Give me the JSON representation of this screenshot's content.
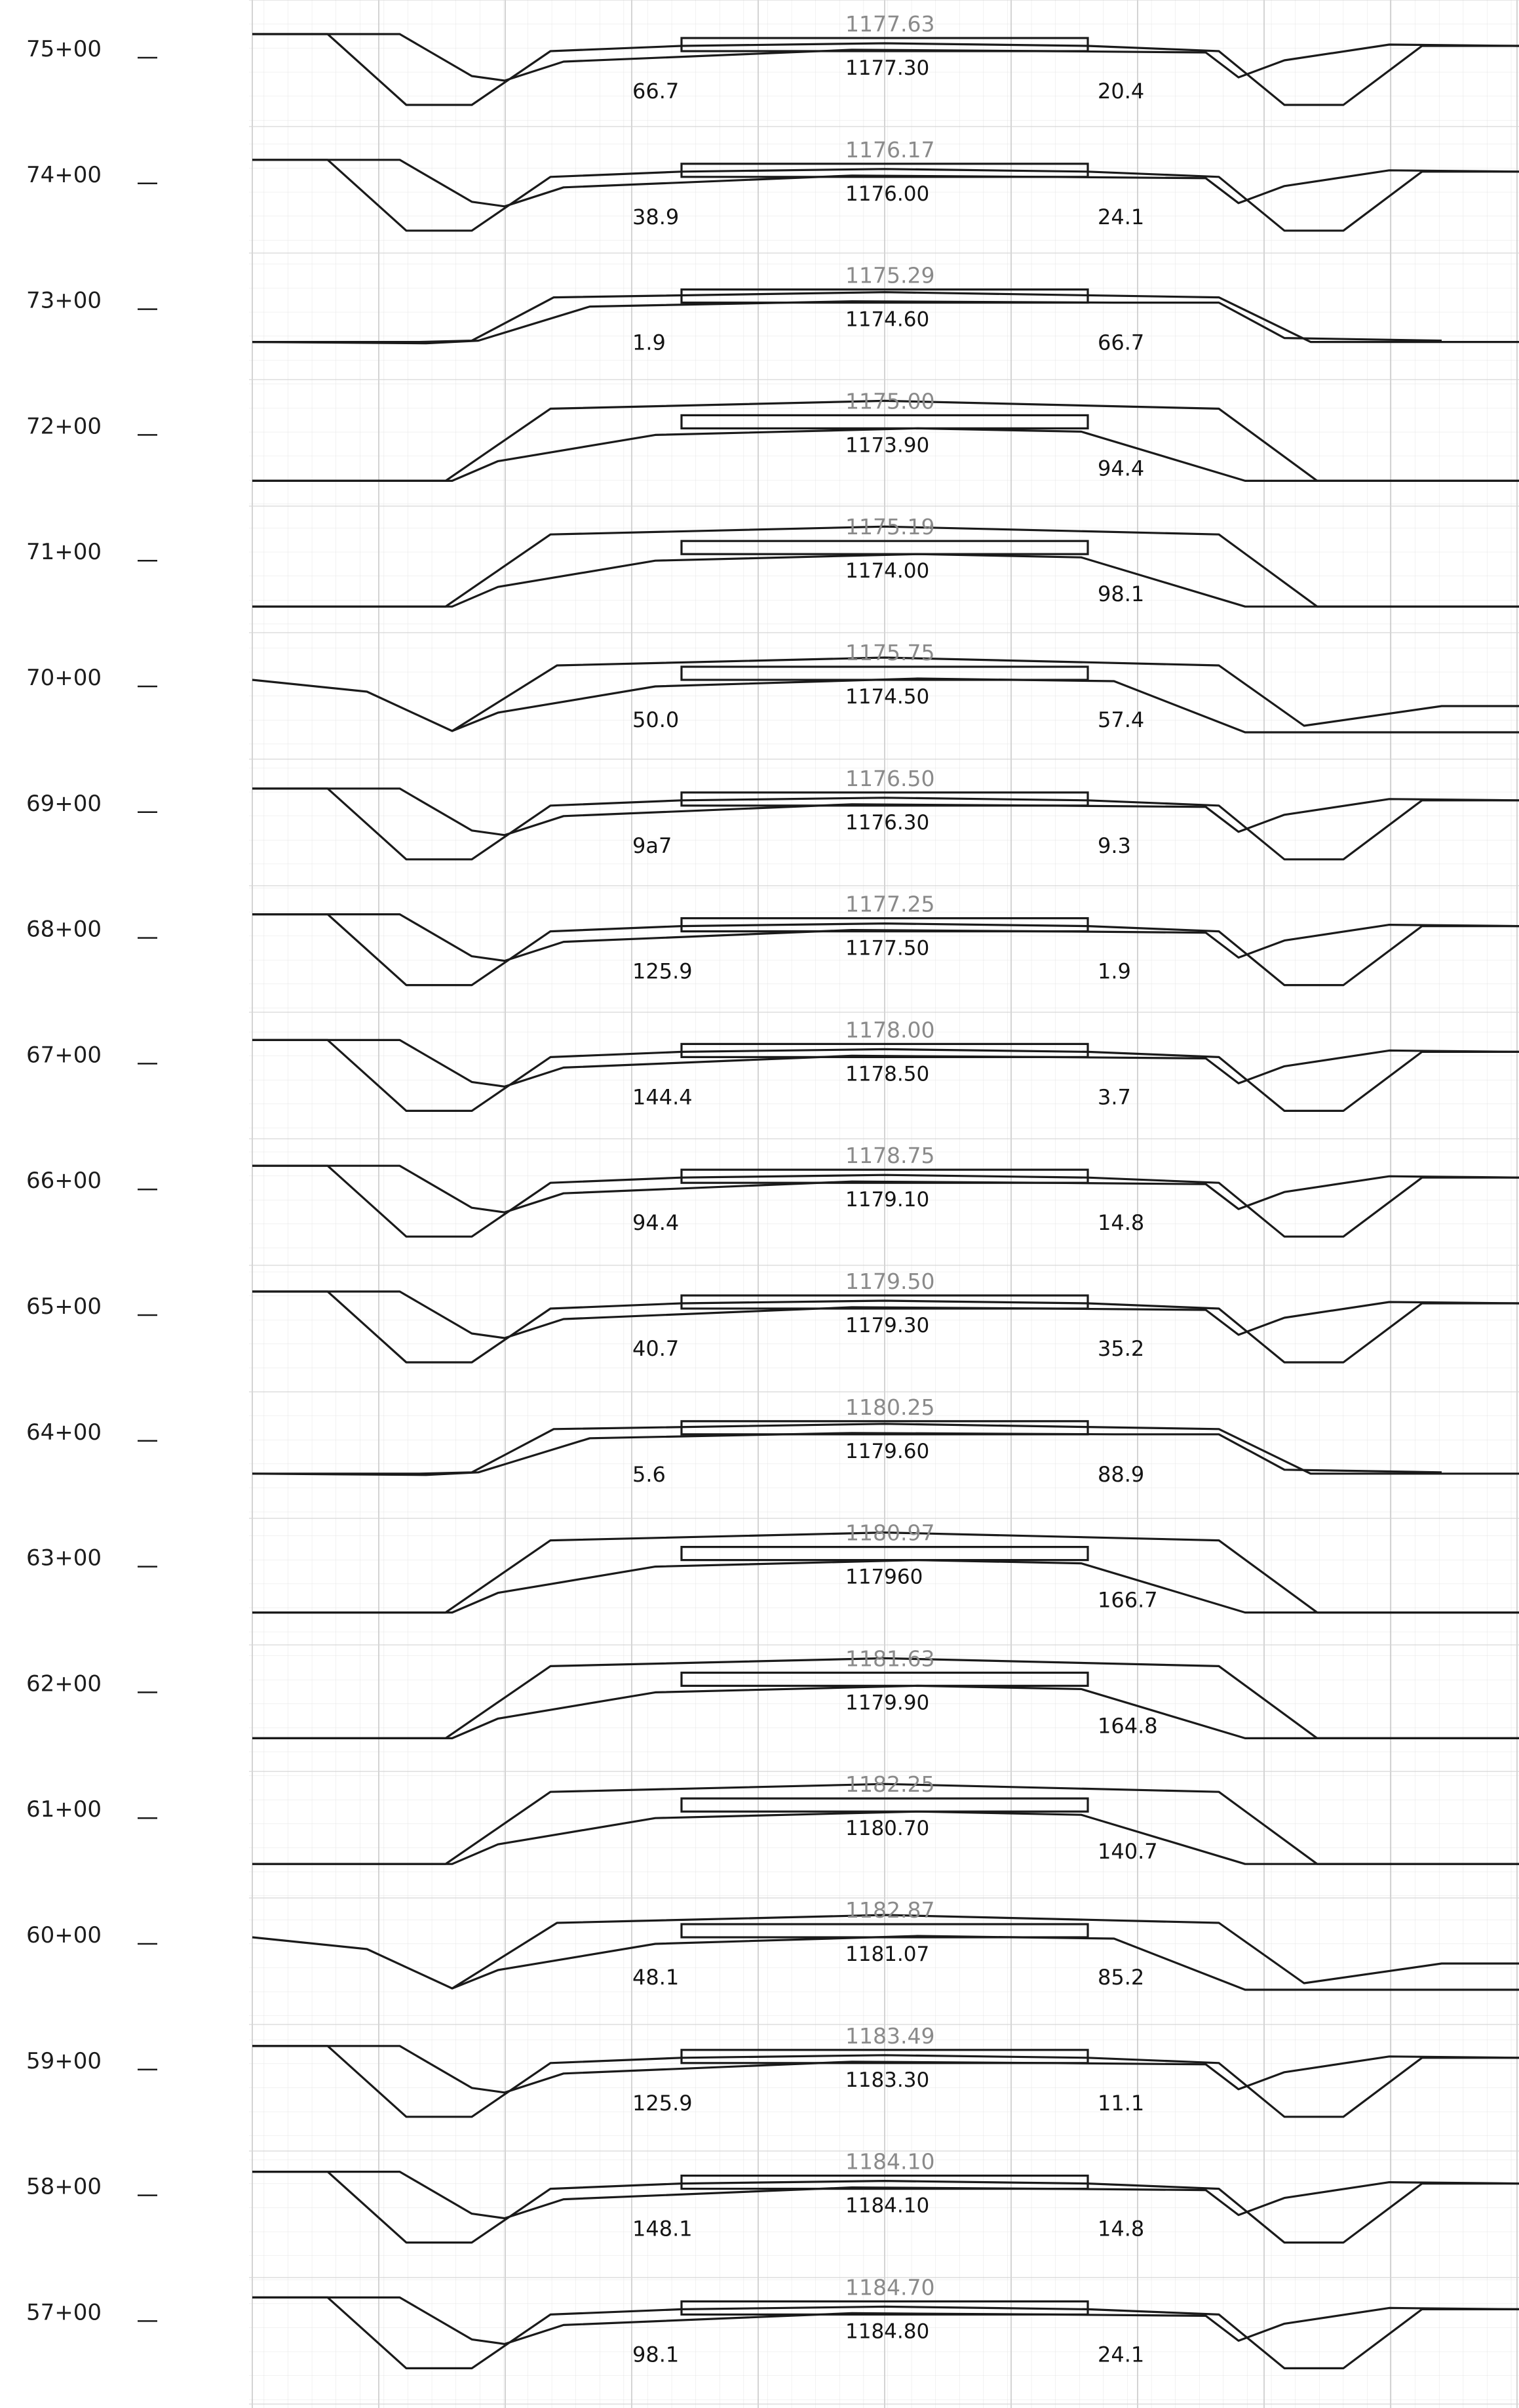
{
  "sections": [
    {
      "station": "75+00",
      "grade": "1177.63",
      "elev": "1177.30",
      "left": "66.7",
      "right": "20.4",
      "type": "cut"
    },
    {
      "station": "74+00",
      "grade": "1176.17",
      "elev": "1176.00",
      "left": "38.9",
      "right": "24.1",
      "type": "cut"
    },
    {
      "station": "73+00",
      "grade": "1175.29",
      "elev": "1174.60",
      "left": "1.9",
      "right": "66.7",
      "type": "mixed"
    },
    {
      "station": "72+00",
      "grade": "1175.00",
      "elev": "1173.90",
      "left": "",
      "right": "94.4",
      "type": "fill"
    },
    {
      "station": "71+00",
      "grade": "1175.19",
      "elev": "1174.00",
      "left": "",
      "right": "98.1",
      "type": "fill"
    },
    {
      "station": "70+00",
      "grade": "1175.75",
      "elev": "1174.50",
      "left": "50.0",
      "right": "57.4",
      "type": "fillslope"
    },
    {
      "station": "69+00",
      "grade": "1176.50",
      "elev": "1176.30",
      "left": "9a7",
      "right": "9.3",
      "type": "cut"
    },
    {
      "station": "68+00",
      "grade": "1177.25",
      "elev": "1177.50",
      "left": "125.9",
      "right": "1.9",
      "type": "cut"
    },
    {
      "station": "67+00",
      "grade": "1178.00",
      "elev": "1178.50",
      "left": "144.4",
      "right": "3.7",
      "type": "cut"
    },
    {
      "station": "66+00",
      "grade": "1178.75",
      "elev": "1179.10",
      "left": "94.4",
      "right": "14.8",
      "type": "cut"
    },
    {
      "station": "65+00",
      "grade": "1179.50",
      "elev": "1179.30",
      "left": "40.7",
      "right": "35.2",
      "type": "cut"
    },
    {
      "station": "64+00",
      "grade": "1180.25",
      "elev": "1179.60",
      "left": "5.6",
      "right": "88.9",
      "type": "mixed"
    },
    {
      "station": "63+00",
      "grade": "1180.97",
      "elev": "117960",
      "left": "",
      "right": "166.7",
      "type": "fill"
    },
    {
      "station": "62+00",
      "grade": "1181.63",
      "elev": "1179.90",
      "left": "",
      "right": "164.8",
      "type": "fill"
    },
    {
      "station": "61+00",
      "grade": "1182.25",
      "elev": "1180.70",
      "left": "",
      "right": "140.7",
      "type": "fill"
    },
    {
      "station": "60+00",
      "grade": "1182.87",
      "elev": "1181.07",
      "left": "48.1",
      "right": "85.2",
      "type": "fillslope"
    },
    {
      "station": "59+00",
      "grade": "1183.49",
      "elev": "1183.30",
      "left": "125.9",
      "right": "11.1",
      "type": "cut"
    },
    {
      "station": "58+00",
      "grade": "1184.10",
      "elev": "1184.10",
      "left": "148.1",
      "right": "14.8",
      "type": "cut"
    },
    {
      "station": "57+00",
      "grade": "1184.70",
      "elev": "1184.80",
      "left": "98.1",
      "right": "24.1",
      "type": "cut"
    }
  ]
}
